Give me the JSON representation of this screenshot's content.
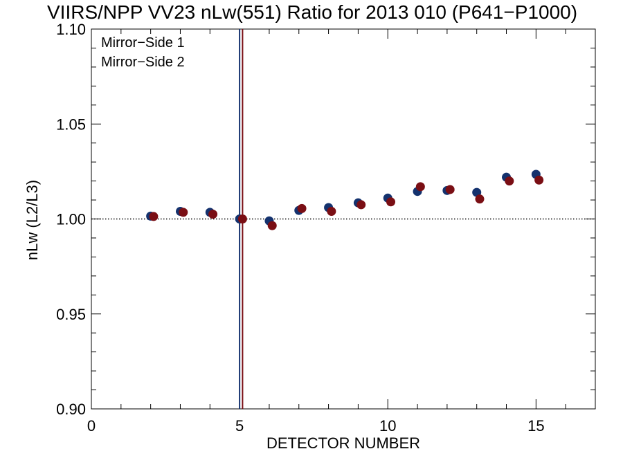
{
  "chart_data": {
    "type": "scatter",
    "title": "VIIRS/NPP VV23 nLw(551) Ratio for 2013 010 (P641−P1000)",
    "xlabel": "DETECTOR NUMBER",
    "ylabel": "nLw (L2/L3)",
    "xlim": [
      0,
      17
    ],
    "ylim": [
      0.9,
      1.1
    ],
    "x_ticks": [
      0,
      5,
      10,
      15
    ],
    "x_tick_labels": [
      "0",
      "5",
      "10",
      "15"
    ],
    "y_ticks": [
      0.9,
      0.95,
      1.0,
      1.05,
      1.1
    ],
    "y_tick_labels": [
      "0.90",
      "0.95",
      "1.00",
      "1.05",
      "1.10"
    ],
    "reference_line": 1.0,
    "legend_position": "top-left",
    "series": [
      {
        "name": "Mirror−Side 1",
        "color": "#14326e",
        "x": [
          2,
          3,
          4,
          5,
          6,
          7,
          8,
          9,
          10,
          11,
          12,
          13,
          14,
          15
        ],
        "y": [
          1.0015,
          1.004,
          1.0035,
          1.0,
          0.999,
          1.0045,
          1.006,
          1.0085,
          1.011,
          1.0145,
          1.015,
          1.014,
          1.022,
          1.0235
        ]
      },
      {
        "name": "Mirror−Side 2",
        "color": "#7a0e14",
        "x": [
          2.1,
          3.1,
          4.1,
          5.1,
          6.1,
          7.1,
          8.1,
          9.1,
          10.1,
          11.1,
          12.1,
          13.1,
          14.1,
          15.1
        ],
        "y": [
          1.0013,
          1.0035,
          1.0025,
          1.0,
          0.9965,
          1.0055,
          1.004,
          1.0075,
          1.009,
          1.017,
          1.0155,
          1.0105,
          1.02,
          1.0205
        ]
      }
    ],
    "vertical_markers": [
      {
        "x": 5.0,
        "color": "#14326e"
      },
      {
        "x": 5.1,
        "color": "#7a0e14"
      }
    ]
  }
}
